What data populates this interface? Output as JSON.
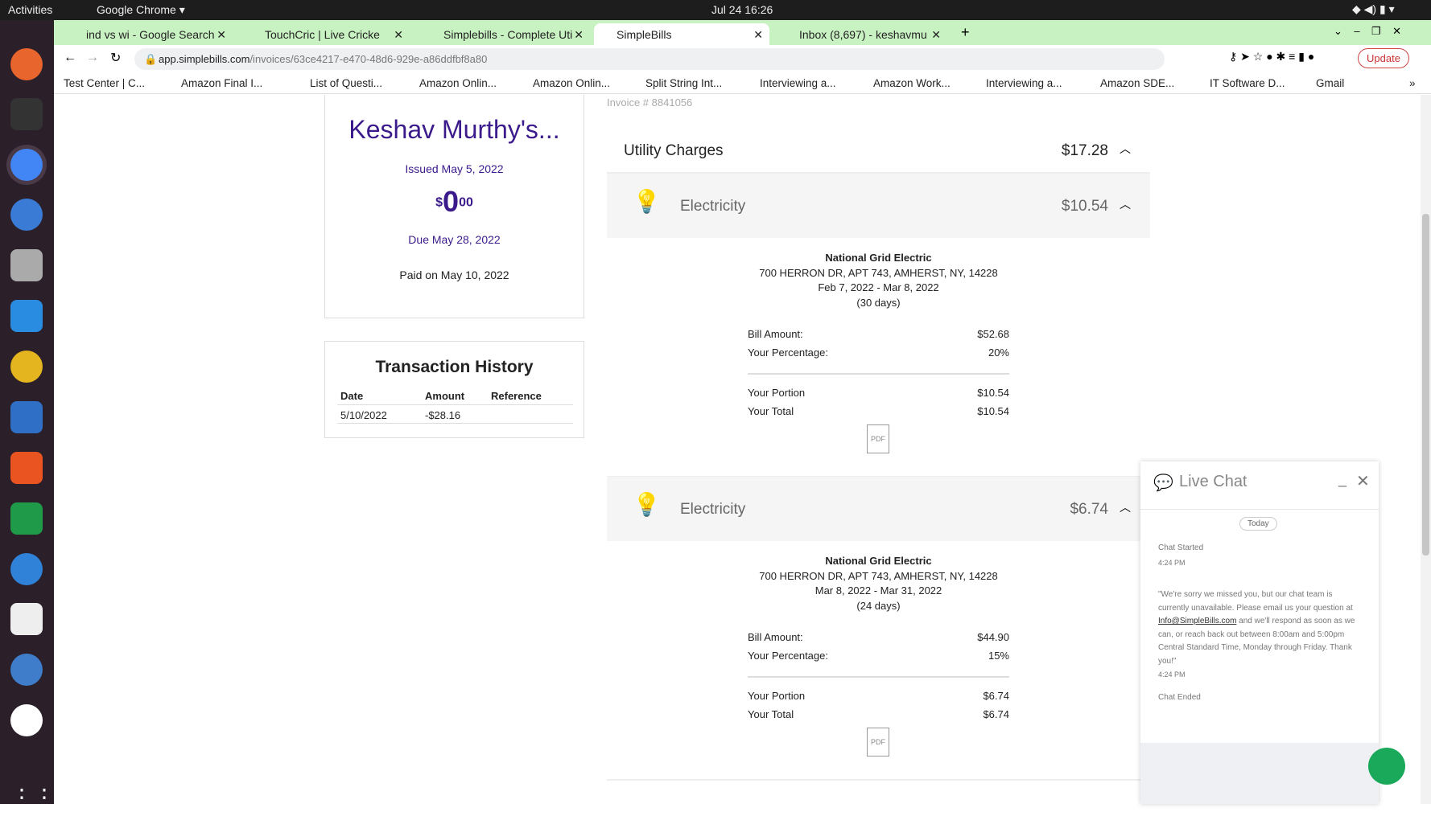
{
  "os": {
    "activities": "Activities",
    "app": "Google Chrome ▾",
    "clock": "Jul 24  16:26"
  },
  "browser": {
    "tabs": [
      {
        "label": "ind vs wi - Google Search"
      },
      {
        "label": "TouchCric | Live Cricke"
      },
      {
        "label": "Simplebills - Complete Uti"
      },
      {
        "label": "SimpleBills"
      },
      {
        "label": "Inbox (8,697) - keshavmu"
      }
    ],
    "url_host": "app.simplebills.com",
    "url_path": "/invoices/63ce4217-e470-48d6-929e-a86ddfbf8a80",
    "update": "Update",
    "bookmarks": [
      "Test Center | C...",
      "Amazon Final I...",
      "List of Questi...",
      "Amazon Onlin...",
      "Amazon Onlin...",
      "Split String Int...",
      "Interviewing a...",
      "Amazon Work...",
      "Interviewing a...",
      "Amazon SDE...",
      "IT Software D...",
      "Gmail"
    ]
  },
  "invoice": {
    "name": "Keshav Murthy's...",
    "issued": "Issued May 5, 2022",
    "currency": "$",
    "amount_int": "0",
    "amount_cents": "00",
    "due": "Due May 28, 2022",
    "paid": "Paid on May 10, 2022",
    "number": "Invoice # 8841056"
  },
  "transactions": {
    "title": "Transaction History",
    "headers": [
      "Date",
      "Amount",
      "Reference"
    ],
    "rows": [
      {
        "date": "5/10/2022",
        "amount": "-$28.16",
        "reference": ""
      }
    ]
  },
  "utility": {
    "title": "Utility Charges",
    "total": "$17.28",
    "items": [
      {
        "name": "Electricity",
        "amount": "$10.54",
        "provider": "National Grid Electric",
        "address": "700 HERRON DR, APT 743, AMHERST, NY, 14228",
        "period": "Feb 7, 2022 - Mar 8, 2022",
        "days": "(30 days)",
        "bill_label": "Bill Amount:",
        "bill": "$52.68",
        "pct_label": "Your Percentage:",
        "pct": "20%",
        "portion_label": "Your Portion",
        "portion": "$10.54",
        "total_label": "Your Total",
        "total": "$10.54",
        "pdf": "PDF"
      },
      {
        "name": "Electricity",
        "amount": "$6.74",
        "provider": "National Grid Electric",
        "address": "700 HERRON DR, APT 743, AMHERST, NY, 14228",
        "period": "Mar 8, 2022 - Mar 31, 2022",
        "days": "(24 days)",
        "bill_label": "Bill Amount:",
        "bill": "$44.90",
        "pct_label": "Your Percentage:",
        "pct": "15%",
        "portion_label": "Your Portion",
        "portion": "$6.74",
        "total_label": "Your Total",
        "total": "$6.74",
        "pdf": "PDF"
      }
    ]
  },
  "chat": {
    "title": "Live Chat",
    "today": "Today",
    "started": "Chat Started",
    "time1": "4:24 PM",
    "msg_pre": "\"We're sorry we missed you, but our chat team is currently unavailable. Please email us your question at ",
    "email": "Info@SimpleBills.com",
    "msg_post": " and we'll respond as soon as we can, or reach back out between 8:00am and 5:00pm Central Standard Time, Monday through Friday. Thank you!\"",
    "time2": "4:24 PM",
    "ended": "Chat Ended"
  },
  "colors": {
    "accent": "#3b1a8c",
    "tabstrip": "#c9f2c2"
  }
}
